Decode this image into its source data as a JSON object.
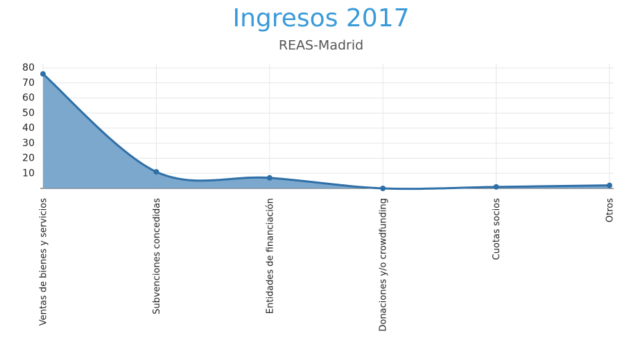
{
  "chart_data": {
    "type": "area",
    "title": "Ingresos 2017",
    "subtitle": "REAS-Madrid",
    "categories": [
      "Ventas de bienes y servicios",
      "Subvenciones concedidas",
      "Entidades de financiación",
      "Donaciones y/o crowdfunding",
      "Cuotas socios",
      "Otros"
    ],
    "values": [
      76,
      11,
      7,
      0,
      1,
      2
    ],
    "color": "#2e6fa7",
    "fill_color": "#6f9fc8",
    "ylim": [
      0,
      80
    ],
    "yticks": [
      10,
      20,
      30,
      40,
      50,
      60,
      70,
      80
    ],
    "grid": true
  }
}
